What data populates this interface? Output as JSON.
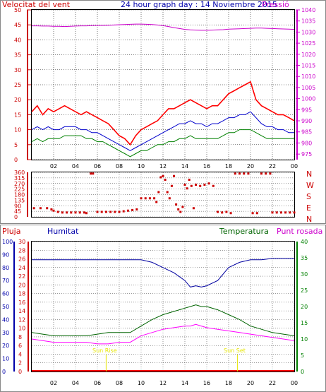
{
  "header": {
    "left_title": "Velocitat del vent",
    "center_title": "24 hour graph day : 14 Noviembre 2015",
    "right_title": "Pressió"
  },
  "colors": {
    "gust": "#ff0000",
    "avg_wind": "#0000cc",
    "min_wind": "#008000",
    "pressure": "#cc00cc",
    "direction": "#cc0000",
    "humidity": "#0000a0",
    "temperature": "#006400",
    "dew_point": "#ff00ff",
    "rain": "#ff0000",
    "sun": "#e6e600",
    "axis_left": "#cc0000",
    "axis_right_pressure": "#cc00cc",
    "axis_blue": "#0000aa",
    "axis_green": "#008000"
  },
  "x_tick_labels": [
    "02",
    "04",
    "06",
    "08",
    "10",
    "12",
    "14",
    "16",
    "18",
    "20",
    "22",
    "00"
  ],
  "chart_data": [
    {
      "type": "line",
      "title": "24 hour graph day : 14 Noviembre 2015",
      "left_axis_label": "Velocitat del vent",
      "right_axis_label": "Pressió",
      "y_left_ticks": [
        0,
        5,
        10,
        15,
        20,
        25,
        30,
        35,
        40,
        45,
        50
      ],
      "y_left_lim": [
        0,
        50
      ],
      "y_right_ticks": [
        975,
        980,
        985,
        990,
        995,
        1000,
        1005,
        1010,
        1015,
        1020,
        1025,
        1030,
        1035,
        1040
      ],
      "y_right_lim": [
        972.5,
        1040
      ],
      "x": [
        0,
        0.5,
        1,
        1.5,
        2,
        2.5,
        3,
        3.5,
        4,
        4.5,
        5,
        5.5,
        6,
        6.5,
        7,
        7.5,
        8,
        8.5,
        9,
        9.5,
        10,
        10.5,
        11,
        11.5,
        12,
        12.5,
        13,
        13.5,
        14,
        14.5,
        15,
        15.5,
        16,
        16.5,
        17,
        17.5,
        18,
        18.5,
        19,
        19.5,
        20,
        20.5,
        21,
        21.5,
        22,
        22.5,
        23,
        23.5,
        24
      ],
      "series": [
        {
          "name": "gust",
          "values": [
            16,
            18,
            15,
            17,
            16,
            17,
            18,
            17,
            16,
            15,
            16,
            15,
            14,
            13,
            12,
            10,
            8,
            7,
            5,
            8,
            10,
            11,
            12,
            13,
            15,
            17,
            17,
            18,
            19,
            20,
            19,
            18,
            17,
            18,
            18,
            20,
            22,
            23,
            24,
            25,
            26,
            20,
            18,
            17,
            16,
            15,
            15,
            14,
            13
          ]
        },
        {
          "name": "average",
          "values": [
            10,
            11,
            10,
            11,
            10,
            10,
            11,
            11,
            11,
            10,
            10,
            9,
            9,
            8,
            7,
            6,
            5,
            4,
            3,
            4,
            5,
            6,
            7,
            8,
            9,
            10,
            11,
            12,
            12,
            13,
            12,
            12,
            11,
            12,
            12,
            13,
            14,
            14,
            15,
            15,
            16,
            14,
            12,
            11,
            11,
            10,
            10,
            9,
            9
          ]
        },
        {
          "name": "minimum",
          "values": [
            6,
            7,
            6,
            7,
            7,
            7,
            8,
            8,
            8,
            8,
            7,
            7,
            6,
            6,
            5,
            4,
            3,
            2,
            1,
            2,
            3,
            3,
            4,
            5,
            5,
            6,
            6,
            7,
            7,
            8,
            7,
            7,
            7,
            7,
            7,
            8,
            9,
            9,
            10,
            10,
            10,
            9,
            8,
            7,
            7,
            7,
            7,
            7,
            7
          ]
        },
        {
          "name": "pressure",
          "values": [
            1032.8,
            1032.8,
            1032.7,
            1032.7,
            1032.6,
            1032.6,
            1032.5,
            1032.6,
            1032.7,
            1032.8,
            1032.8,
            1032.9,
            1033.0,
            1033.0,
            1033.1,
            1033.2,
            1033.3,
            1033.4,
            1033.5,
            1033.6,
            1033.6,
            1033.5,
            1033.4,
            1033.2,
            1032.9,
            1032.5,
            1032.0,
            1031.6,
            1031.2,
            1031.0,
            1030.9,
            1030.8,
            1030.8,
            1030.9,
            1031.0,
            1031.1,
            1031.3,
            1031.4,
            1031.5,
            1031.6,
            1031.7,
            1031.8,
            1031.8,
            1031.7,
            1031.6,
            1031.5,
            1031.4,
            1031.3,
            1031.2
          ]
        }
      ]
    },
    {
      "type": "scatter",
      "right_axis_labels": [
        "N",
        "W",
        "S",
        "E",
        "N"
      ],
      "y_ticks": [
        0,
        45,
        90,
        135,
        180,
        225,
        270,
        315,
        360
      ],
      "y_lim": [
        0,
        360
      ],
      "points": [
        [
          0.2,
          70
        ],
        [
          0.8,
          70
        ],
        [
          1.4,
          70
        ],
        [
          1.8,
          60
        ],
        [
          2.0,
          50
        ],
        [
          2.4,
          40
        ],
        [
          2.8,
          35
        ],
        [
          3.2,
          35
        ],
        [
          3.6,
          35
        ],
        [
          4.0,
          35
        ],
        [
          4.4,
          35
        ],
        [
          4.8,
          35
        ],
        [
          5.0,
          30
        ],
        [
          5.4,
          350
        ],
        [
          5.6,
          350
        ],
        [
          6.0,
          40
        ],
        [
          6.4,
          40
        ],
        [
          6.8,
          40
        ],
        [
          7.2,
          40
        ],
        [
          7.6,
          40
        ],
        [
          8.0,
          40
        ],
        [
          8.4,
          45
        ],
        [
          8.8,
          50
        ],
        [
          9.2,
          55
        ],
        [
          9.6,
          60
        ],
        [
          10.0,
          150
        ],
        [
          10.4,
          150
        ],
        [
          10.8,
          150
        ],
        [
          11.2,
          150
        ],
        [
          11.4,
          120
        ],
        [
          11.6,
          200
        ],
        [
          11.8,
          320
        ],
        [
          12.0,
          330
        ],
        [
          12.2,
          300
        ],
        [
          12.4,
          200
        ],
        [
          12.6,
          150
        ],
        [
          12.8,
          250
        ],
        [
          13.0,
          330
        ],
        [
          13.2,
          100
        ],
        [
          13.4,
          60
        ],
        [
          13.6,
          40
        ],
        [
          13.8,
          80
        ],
        [
          14.0,
          260
        ],
        [
          14.2,
          230
        ],
        [
          14.4,
          300
        ],
        [
          14.6,
          250
        ],
        [
          14.8,
          70
        ],
        [
          15.0,
          260
        ],
        [
          15.4,
          250
        ],
        [
          15.8,
          260
        ],
        [
          16.2,
          270
        ],
        [
          16.6,
          250
        ],
        [
          17.0,
          40
        ],
        [
          17.4,
          35
        ],
        [
          17.8,
          40
        ],
        [
          18.2,
          30
        ],
        [
          18.6,
          350
        ],
        [
          19.0,
          350
        ],
        [
          19.4,
          350
        ],
        [
          19.8,
          350
        ],
        [
          20.2,
          30
        ],
        [
          20.6,
          30
        ],
        [
          21.0,
          350
        ],
        [
          21.4,
          350
        ],
        [
          21.8,
          350
        ],
        [
          22.0,
          35
        ],
        [
          22.4,
          35
        ],
        [
          22.8,
          35
        ],
        [
          23.2,
          35
        ],
        [
          23.6,
          35
        ],
        [
          24.0,
          35
        ]
      ]
    },
    {
      "type": "line",
      "legend": [
        "Pluja",
        "Humitat",
        "Temperatura",
        "Punt rosada"
      ],
      "y_rain_ticks": [
        0,
        2,
        4,
        6,
        8,
        10,
        12,
        14,
        16,
        18,
        20
      ],
      "y_humidity_ticks": [
        0,
        10,
        20,
        30,
        40,
        50,
        60,
        70,
        80,
        90,
        100
      ],
      "y_temp_left_ticks": [
        0,
        2,
        4,
        6,
        8,
        10,
        12,
        14,
        16,
        18,
        20,
        22,
        24,
        26,
        28,
        30
      ],
      "y_temp_right_ticks": [
        0,
        5,
        10,
        15,
        20,
        25,
        30,
        35,
        40
      ],
      "y_temp_lim": [
        0,
        40
      ],
      "annotations": [
        "Sun Rise",
        "Sun Set"
      ],
      "sunrise_hour": 6.8,
      "sunset_hour": 18.8,
      "x": [
        0,
        1,
        2,
        3,
        4,
        5,
        6,
        7,
        8,
        9,
        10,
        11,
        12,
        13,
        14,
        14.5,
        15,
        15.5,
        16,
        17,
        18,
        19,
        20,
        21,
        22,
        23,
        24
      ],
      "series": [
        {
          "name": "Humitat",
          "values": [
            86,
            86,
            86,
            86,
            86,
            86,
            86,
            86,
            86,
            86,
            86,
            84,
            80,
            76,
            70,
            65,
            66,
            65,
            66,
            70,
            80,
            84,
            86,
            86,
            87,
            87,
            87
          ]
        },
        {
          "name": "Temperatura",
          "values": [
            12,
            11.5,
            11,
            11,
            11,
            11,
            11.5,
            12,
            12,
            12,
            14,
            16,
            17.5,
            18.5,
            19.5,
            20,
            20.5,
            20,
            20,
            19,
            17.5,
            16,
            14,
            13,
            12,
            11.5,
            11
          ]
        },
        {
          "name": "Punt rosada",
          "values": [
            10,
            9.5,
            9,
            9,
            9,
            9,
            8.5,
            8.5,
            9,
            9,
            11,
            12,
            13,
            13.5,
            14,
            14,
            14.5,
            14,
            13.5,
            13,
            12.5,
            12,
            11.5,
            11,
            10.5,
            10,
            9.5
          ]
        },
        {
          "name": "Pluja",
          "values": [
            0,
            0,
            0,
            0,
            0,
            0,
            0,
            0,
            0,
            0,
            0,
            0,
            0,
            0,
            0,
            0,
            0,
            0,
            0,
            0,
            0,
            0,
            0,
            0,
            0,
            0,
            0
          ]
        }
      ]
    }
  ],
  "bottom_panel_labels": {
    "rain": "Pluja",
    "humidity": "Humitat",
    "temperature": "Temperatura",
    "dew_point": "Punt rosada",
    "sunrise": "Sun Rise",
    "sunset": "Sun Set"
  },
  "direction_labels": [
    "N",
    "W",
    "S",
    "E",
    "N"
  ]
}
